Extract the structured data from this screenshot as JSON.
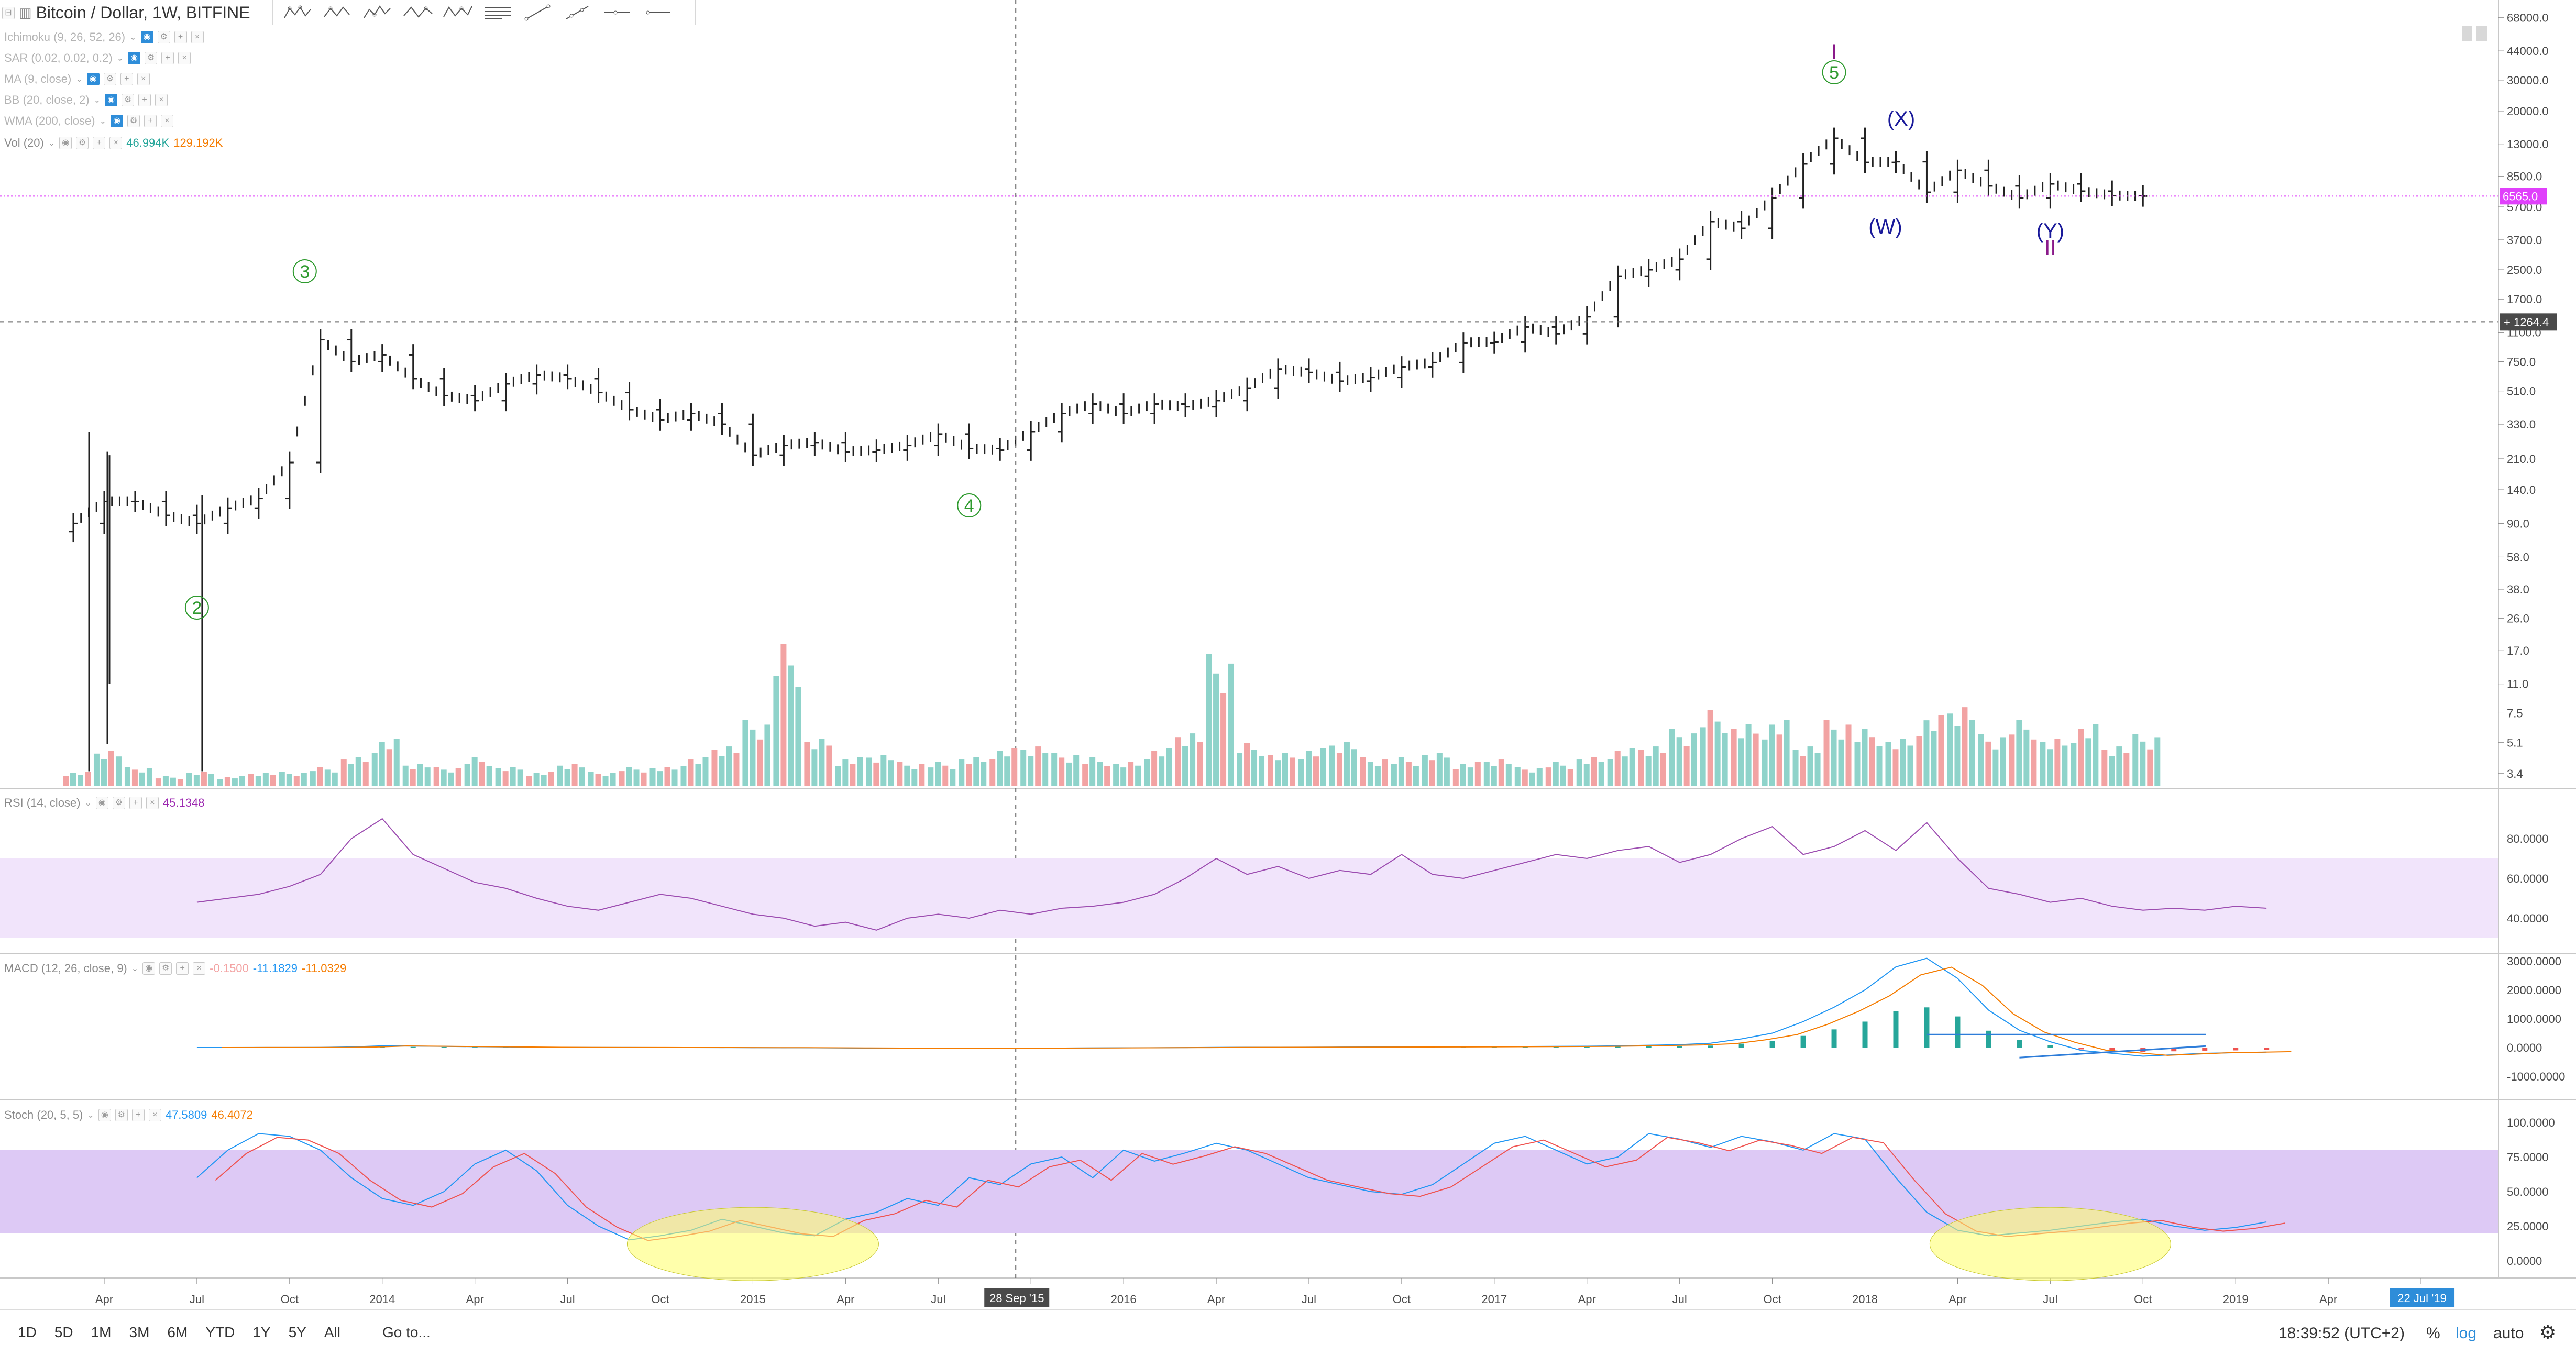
{
  "header": {
    "symbol_title": "Bitcoin / Dollar, 1W, BITFINE"
  },
  "indicators": [
    {
      "label": "Ichimoku (9, 26, 52, 26)",
      "dim": true
    },
    {
      "label": "SAR (0.02, 0.02, 0.2)",
      "dim": true
    },
    {
      "label": "MA (9, close)",
      "dim": true
    },
    {
      "label": "BB (20, close, 2)",
      "dim": true
    },
    {
      "label": "WMA (200, close)",
      "dim": true
    }
  ],
  "volume_legend": {
    "label": "Vol (20)",
    "value1": "46.994K",
    "value2": "129.192K",
    "color1": "#26a69a",
    "color2": "#f57c00"
  },
  "rsi_legend": {
    "label": "RSI (14, close)",
    "value": "45.1348",
    "color": "#9c27b0"
  },
  "macd_legend": {
    "label": "MACD (12, 26, close, 9)",
    "value1": "-0.1500",
    "value2": "-11.1829",
    "value3": "-11.0329",
    "color1": "#f3a4a4",
    "color2": "#2196f3",
    "color3": "#f57c00"
  },
  "stoch_legend": {
    "label": "Stoch (20, 5, 5)",
    "value1": "47.5809",
    "value2": "46.4072",
    "color1": "#2196f3",
    "color2": "#f57c00"
  },
  "price_axis_ticks": [
    "68000.0",
    "44000.0",
    "30000.0",
    "20000.0",
    "13000.0",
    "8500.0",
    "5700.0",
    "3700.0",
    "2500.0",
    "1700.0",
    "1100.0",
    "750.0",
    "510.0",
    "330.0",
    "210.0",
    "140.0",
    "90.0",
    "58.0",
    "38.0",
    "26.0",
    "17.0",
    "11.0",
    "7.5",
    "5.1",
    "3.4"
  ],
  "price_labels": {
    "current": "6565.0",
    "crosshair": "1264.4"
  },
  "rsi_axis_ticks": [
    "80.0000",
    "60.0000",
    "40.0000"
  ],
  "macd_axis_ticks": [
    "3000.0000",
    "2000.0000",
    "1000.0000",
    "0.0000",
    "-1000.0000"
  ],
  "stoch_axis_ticks": [
    "100.0000",
    "75.0000",
    "50.0000",
    "25.0000",
    "0.0000"
  ],
  "time_axis_ticks": [
    "Apr",
    "Jul",
    "Oct",
    "2014",
    "Apr",
    "Jul",
    "Oct",
    "2015",
    "Apr",
    "Jul",
    "Oct",
    "2016",
    "Apr",
    "Jul",
    "Oct",
    "2017",
    "Apr",
    "Jul",
    "Oct",
    "2018",
    "Apr",
    "Jul",
    "Oct",
    "2019",
    "Apr",
    "Jul"
  ],
  "time_labels": {
    "crosshair": "28 Sep '15",
    "right": "22 Jul '19"
  },
  "wave_labels": {
    "w2": "2",
    "w3": "3",
    "w4": "4",
    "w5": "5",
    "wW": "(W)",
    "wX": "(X)",
    "wY": "(Y)",
    "top_I": "I",
    "bottom_II": "II"
  },
  "bottom_bar": {
    "periods": [
      "1D",
      "5D",
      "1M",
      "3M",
      "6M",
      "YTD",
      "1Y",
      "5Y",
      "All"
    ],
    "goto": "Go to...",
    "clock": "18:39:52 (UTC+2)",
    "percent": "%",
    "log": "log",
    "auto": "auto",
    "gear": "⚙"
  },
  "colors": {
    "up": "#26a69a",
    "down": "#ef5350",
    "accent": "#2e8dd9",
    "wave": "#2e9a2e",
    "corrective": "#1a1a9a"
  },
  "price_series": [
    {
      "date": "2013-03",
      "close": 90
    },
    {
      "date": "2013-04",
      "close": 120
    },
    {
      "date": "2013-05",
      "close": 120
    },
    {
      "date": "2013-06",
      "close": 100
    },
    {
      "date": "2013-07",
      "close": 90
    },
    {
      "date": "2013-08",
      "close": 110
    },
    {
      "date": "2013-09",
      "close": 125
    },
    {
      "date": "2013-10",
      "close": 200
    },
    {
      "date": "2013-11",
      "close": 1000
    },
    {
      "date": "2013-12",
      "close": 750
    },
    {
      "date": "2014-01",
      "close": 820
    },
    {
      "date": "2014-02",
      "close": 600
    },
    {
      "date": "2014-03",
      "close": 480
    },
    {
      "date": "2014-04",
      "close": 450
    },
    {
      "date": "2014-05",
      "close": 560
    },
    {
      "date": "2014-06",
      "close": 630
    },
    {
      "date": "2014-07",
      "close": 600
    },
    {
      "date": "2014-08",
      "close": 500
    },
    {
      "date": "2014-09",
      "close": 400
    },
    {
      "date": "2014-10",
      "close": 350
    },
    {
      "date": "2014-11",
      "close": 380
    },
    {
      "date": "2014-12",
      "close": 330
    },
    {
      "date": "2015-01",
      "close": 220
    },
    {
      "date": "2015-02",
      "close": 250
    },
    {
      "date": "2015-03",
      "close": 260
    },
    {
      "date": "2015-04",
      "close": 230
    },
    {
      "date": "2015-05",
      "close": 235
    },
    {
      "date": "2015-06",
      "close": 250
    },
    {
      "date": "2015-07",
      "close": 290
    },
    {
      "date": "2015-08",
      "close": 240
    },
    {
      "date": "2015-09",
      "close": 235
    },
    {
      "date": "2015-10",
      "close": 300
    },
    {
      "date": "2015-11",
      "close": 380
    },
    {
      "date": "2015-12",
      "close": 430
    },
    {
      "date": "2016-01",
      "close": 380
    },
    {
      "date": "2016-02",
      "close": 430
    },
    {
      "date": "2016-03",
      "close": 415
    },
    {
      "date": "2016-04",
      "close": 450
    },
    {
      "date": "2016-05",
      "close": 530
    },
    {
      "date": "2016-06",
      "close": 680
    },
    {
      "date": "2016-07",
      "close": 650
    },
    {
      "date": "2016-08",
      "close": 580
    },
    {
      "date": "2016-09",
      "close": 610
    },
    {
      "date": "2016-10",
      "close": 700
    },
    {
      "date": "2016-11",
      "close": 740
    },
    {
      "date": "2016-12",
      "close": 960
    },
    {
      "date": "2017-01",
      "close": 970
    },
    {
      "date": "2017-02",
      "close": 1180
    },
    {
      "date": "2017-03",
      "close": 1080
    },
    {
      "date": "2017-04",
      "close": 1350
    },
    {
      "date": "2017-05",
      "close": 2300
    },
    {
      "date": "2017-06",
      "close": 2500
    },
    {
      "date": "2017-07",
      "close": 2870
    },
    {
      "date": "2017-08",
      "close": 4700
    },
    {
      "date": "2017-09",
      "close": 4300
    },
    {
      "date": "2017-10",
      "close": 6400
    },
    {
      "date": "2017-11",
      "close": 10000
    },
    {
      "date": "2017-12",
      "close": 14000
    },
    {
      "date": "2018-01",
      "close": 10200
    },
    {
      "date": "2018-02",
      "close": 10300
    },
    {
      "date": "2018-03",
      "close": 6900
    },
    {
      "date": "2018-04",
      "close": 9200
    },
    {
      "date": "2018-05",
      "close": 7500
    },
    {
      "date": "2018-06",
      "close": 6400
    },
    {
      "date": "2018-07",
      "close": 7700
    },
    {
      "date": "2018-08",
      "close": 7000
    },
    {
      "date": "2018-09",
      "close": 6600
    },
    {
      "date": "2018-10",
      "close": 6565
    }
  ],
  "rsi_series": [
    48,
    50,
    52,
    56,
    62,
    80,
    90,
    72,
    65,
    58,
    55,
    50,
    46,
    44,
    48,
    52,
    50,
    46,
    42,
    40,
    36,
    38,
    34,
    40,
    42,
    40,
    44,
    42,
    45,
    46,
    48,
    52,
    60,
    70,
    62,
    66,
    60,
    64,
    62,
    72,
    62,
    60,
    64,
    68,
    72,
    70,
    74,
    76,
    68,
    72,
    80,
    86,
    72,
    76,
    84,
    74,
    88,
    70,
    55,
    52,
    48,
    50,
    46,
    44,
    45,
    44,
    46,
    45
  ],
  "macd_series": [
    0,
    1,
    2,
    3,
    5,
    20,
    60,
    50,
    40,
    30,
    20,
    10,
    5,
    3,
    2,
    1,
    0,
    -2,
    -4,
    -6,
    -10,
    -15,
    -20,
    -25,
    -28,
    -28,
    -26,
    -22,
    -18,
    -14,
    -10,
    -6,
    -2,
    5,
    8,
    10,
    12,
    15,
    18,
    20,
    22,
    25,
    30,
    35,
    40,
    45,
    60,
    80,
    100,
    150,
    300,
    500,
    900,
    1400,
    2000,
    2800,
    3100,
    2400,
    1300,
    600,
    200,
    -100,
    -200,
    -300,
    -250,
    -200,
    -180,
    -160
  ],
  "stoch_series": [
    60,
    80,
    92,
    90,
    80,
    60,
    45,
    40,
    50,
    70,
    80,
    65,
    40,
    25,
    15,
    18,
    22,
    30,
    25,
    20,
    18,
    30,
    35,
    45,
    40,
    60,
    55,
    70,
    75,
    60,
    80,
    72,
    78,
    85,
    80,
    70,
    60,
    55,
    50,
    48,
    55,
    70,
    85,
    90,
    80,
    70,
    75,
    92,
    88,
    82,
    90,
    86,
    80,
    92,
    88,
    60,
    35,
    22,
    18,
    20,
    22,
    25,
    28,
    30,
    25,
    22,
    24,
    28
  ],
  "volume_series": [
    3,
    8,
    4,
    2,
    3,
    2,
    3,
    3,
    4,
    6,
    10,
    5,
    4,
    6,
    4,
    3,
    5,
    3,
    4,
    4,
    6,
    9,
    14,
    30,
    10,
    6,
    7,
    5,
    5,
    6,
    8,
    9,
    7,
    6,
    5,
    8,
    12,
    28,
    9,
    7,
    8,
    10,
    6,
    6,
    7,
    5,
    6,
    4,
    5,
    6,
    8,
    9,
    12,
    16,
    13,
    14,
    9,
    14,
    12,
    10,
    15,
    18,
    11,
    14,
    10,
    13,
    9,
    11
  ]
}
